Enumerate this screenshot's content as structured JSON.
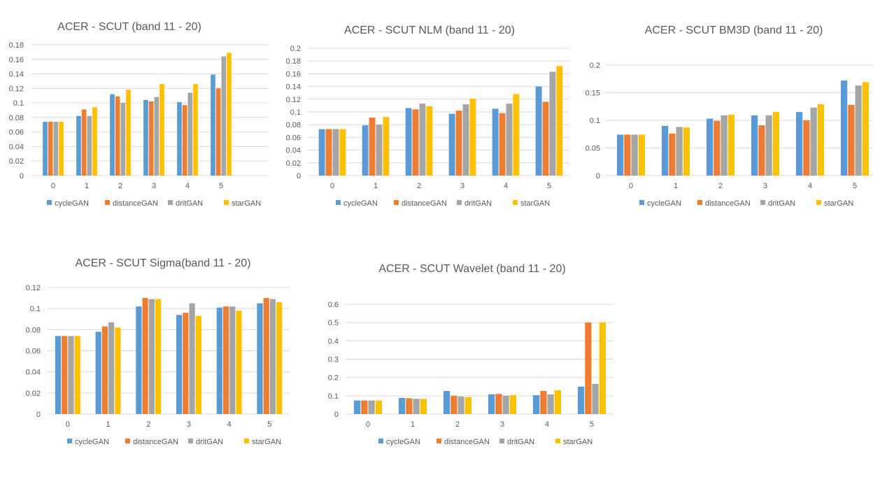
{
  "series_colors": {
    "cycleGAN": "#5b9bd5",
    "distanceGAN": "#ed7d31",
    "dritGAN": "#a5a5a5",
    "starGAN": "#ffc000"
  },
  "chart_data": [
    {
      "type": "bar",
      "title": "ACER - SCUT (band 11 - 20)",
      "categories": [
        "0",
        "1",
        "2",
        "3",
        "4",
        "5"
      ],
      "ylim": [
        0,
        0.18
      ],
      "yticks": [
        "0",
        "0.02",
        "0.04",
        "0.06",
        "0.08",
        "0.1",
        "0.12",
        "0.14",
        "0.16",
        "0.18"
      ],
      "grid": true,
      "legend": "bottom",
      "series": [
        {
          "name": "cycleGAN",
          "values": [
            0.074,
            0.082,
            0.112,
            0.104,
            0.101,
            0.139
          ]
        },
        {
          "name": "distanceGAN",
          "values": [
            0.074,
            0.091,
            0.109,
            0.102,
            0.097,
            0.12
          ]
        },
        {
          "name": "dritGAN",
          "values": [
            0.074,
            0.082,
            0.1,
            0.108,
            0.114,
            0.164
          ]
        },
        {
          "name": "starGAN",
          "values": [
            0.074,
            0.094,
            0.118,
            0.126,
            0.126,
            0.169
          ]
        }
      ]
    },
    {
      "type": "bar",
      "title": "ACER - SCUT NLM (band 11 - 20)",
      "categories": [
        "0",
        "1",
        "2",
        "3",
        "4",
        "5"
      ],
      "ylim": [
        0,
        0.2
      ],
      "yticks": [
        "0",
        "0.02",
        "0.04",
        "0.06",
        "0.08",
        "0.1",
        "0.12",
        "0.14",
        "0.16",
        "0.18",
        "0.2"
      ],
      "grid": true,
      "legend": "bottom",
      "series": [
        {
          "name": "cycleGAN",
          "values": [
            0.073,
            0.079,
            0.106,
            0.097,
            0.105,
            0.14
          ]
        },
        {
          "name": "distanceGAN",
          "values": [
            0.073,
            0.091,
            0.104,
            0.102,
            0.098,
            0.116
          ]
        },
        {
          "name": "dritGAN",
          "values": [
            0.073,
            0.08,
            0.113,
            0.112,
            0.113,
            0.163
          ]
        },
        {
          "name": "starGAN",
          "values": [
            0.073,
            0.092,
            0.109,
            0.121,
            0.128,
            0.172
          ]
        }
      ]
    },
    {
      "type": "bar",
      "title": "ACER - SCUT BM3D (band 11 - 20)",
      "categories": [
        "0",
        "1",
        "2",
        "3",
        "4",
        "5"
      ],
      "ylim": [
        0,
        0.2
      ],
      "yticks": [
        "0",
        "0.05",
        "0.1",
        "0.15",
        "0.2"
      ],
      "grid": true,
      "legend": "bottom",
      "series": [
        {
          "name": "cycleGAN",
          "values": [
            0.074,
            0.09,
            0.103,
            0.109,
            0.115,
            0.172
          ]
        },
        {
          "name": "distanceGAN",
          "values": [
            0.074,
            0.076,
            0.099,
            0.091,
            0.1,
            0.128
          ]
        },
        {
          "name": "dritGAN",
          "values": [
            0.074,
            0.088,
            0.109,
            0.109,
            0.123,
            0.163
          ]
        },
        {
          "name": "starGAN",
          "values": [
            0.074,
            0.087,
            0.11,
            0.115,
            0.129,
            0.169
          ]
        }
      ]
    },
    {
      "type": "bar",
      "title": "ACER - SCUT Sigma(band 11 - 20)",
      "categories": [
        "0",
        "1",
        "2",
        "3",
        "4",
        "5"
      ],
      "ylim": [
        0,
        0.12
      ],
      "yticks": [
        "0",
        "0.02",
        "0.04",
        "0.06",
        "0.08",
        "0.1",
        "0.12"
      ],
      "grid": true,
      "legend": "bottom",
      "series": [
        {
          "name": "cycleGAN",
          "values": [
            0.074,
            0.078,
            0.102,
            0.094,
            0.101,
            0.105
          ]
        },
        {
          "name": "distanceGAN",
          "values": [
            0.074,
            0.083,
            0.11,
            0.096,
            0.102,
            0.11
          ]
        },
        {
          "name": "dritGAN",
          "values": [
            0.074,
            0.087,
            0.109,
            0.105,
            0.102,
            0.109
          ]
        },
        {
          "name": "starGAN",
          "values": [
            0.074,
            0.082,
            0.109,
            0.093,
            0.098,
            0.106
          ]
        }
      ]
    },
    {
      "type": "bar",
      "title": "ACER - SCUT Wavelet (band 11 - 20)",
      "categories": [
        "0",
        "1",
        "2",
        "3",
        "4",
        "5"
      ],
      "ylim": [
        0,
        0.6
      ],
      "yticks": [
        "0",
        "0.1",
        "0.2",
        "0.3",
        "0.4",
        "0.5",
        "0.6"
      ],
      "grid": true,
      "legend": "bottom",
      "series": [
        {
          "name": "cycleGAN",
          "values": [
            0.074,
            0.088,
            0.126,
            0.108,
            0.103,
            0.15
          ]
        },
        {
          "name": "distanceGAN",
          "values": [
            0.074,
            0.086,
            0.1,
            0.11,
            0.126,
            0.5
          ]
        },
        {
          "name": "dritGAN",
          "values": [
            0.074,
            0.083,
            0.096,
            0.1,
            0.108,
            0.165
          ]
        },
        {
          "name": "starGAN",
          "values": [
            0.074,
            0.083,
            0.093,
            0.103,
            0.13,
            0.5
          ]
        }
      ]
    }
  ]
}
